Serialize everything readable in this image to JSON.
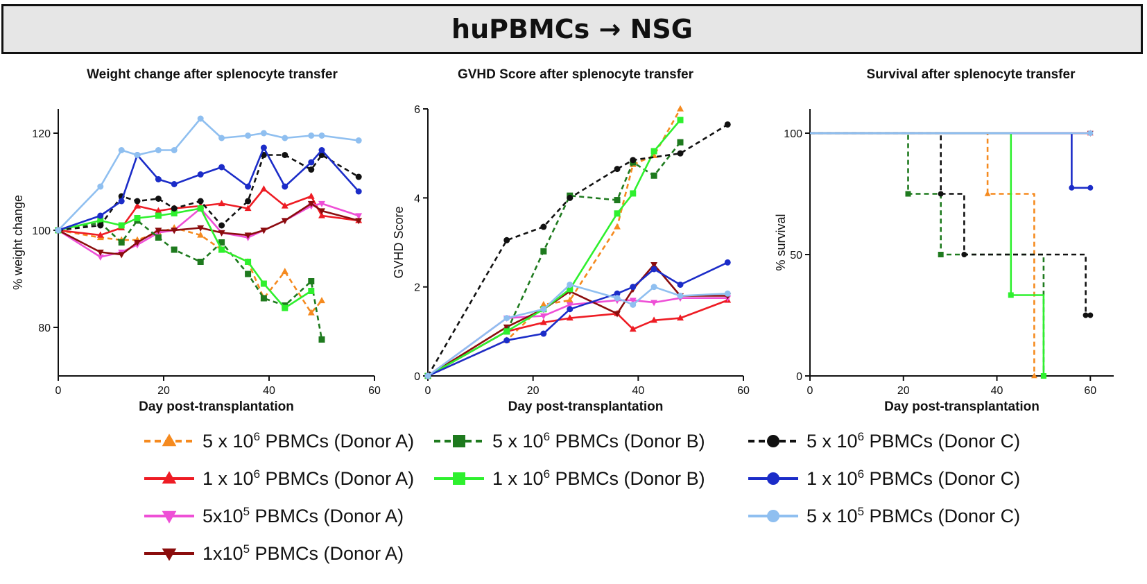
{
  "banner": {
    "title": "huPBMCs → NSG"
  },
  "chart_data": [
    {
      "type": "line",
      "title": "Weight change after splenocyte transfer",
      "xlabel": "Day post-transplantation",
      "ylabel": "% weight change",
      "xlim": [
        0,
        60
      ],
      "ylim": [
        70,
        125
      ],
      "xticks": [
        "0",
        "20",
        "40",
        "60"
      ],
      "yticks": [
        "80",
        "100",
        "120"
      ],
      "series": [
        {
          "name": "5 x 10^6 PBMCs (Donor A)",
          "x": [
            0,
            8,
            12,
            15,
            19,
            22,
            27,
            31,
            36,
            39,
            43,
            48,
            50
          ],
          "y": [
            100,
            98.5,
            98,
            98,
            99.5,
            100.5,
            99,
            96,
            93.5,
            86,
            91.5,
            83,
            85.5
          ]
        },
        {
          "name": "1 x 10^6 PBMCs (Donor A)",
          "x": [
            0,
            8,
            12,
            15,
            19,
            22,
            27,
            31,
            36,
            39,
            43,
            48,
            50,
            57
          ],
          "y": [
            100,
            99,
            100.5,
            105,
            104,
            104.5,
            105,
            105.5,
            104.5,
            108.5,
            105,
            107,
            103,
            102
          ]
        },
        {
          "name": "5x10^5 PBMCs (Donor A)",
          "x": [
            0,
            8,
            12,
            15,
            19,
            22,
            27,
            31,
            36,
            39,
            43,
            48,
            50,
            57
          ],
          "y": [
            100,
            94.5,
            95.5,
            97,
            99.5,
            100,
            104.5,
            99.5,
            98.5,
            100,
            102,
            105,
            105.5,
            103
          ]
        },
        {
          "name": "1x10^5 PBMCs (Donor A)",
          "x": [
            0,
            8,
            12,
            15,
            19,
            22,
            27,
            31,
            36,
            39,
            43,
            48,
            50,
            57
          ],
          "y": [
            100,
            95.5,
            95,
            97.5,
            100,
            100,
            100.5,
            99.5,
            99,
            100,
            102,
            105.5,
            104,
            102
          ]
        },
        {
          "name": "5 x 10^6 PBMCs (Donor B)",
          "x": [
            0,
            8,
            12,
            15,
            19,
            22,
            27,
            31,
            36,
            39,
            43,
            48,
            50
          ],
          "y": [
            100,
            101.5,
            97.5,
            102,
            98.5,
            96,
            93.5,
            97.5,
            91,
            86,
            84.5,
            89.5,
            77.5
          ]
        },
        {
          "name": "1 x 10^6 PBMCs (Donor B)",
          "x": [
            0,
            8,
            12,
            15,
            19,
            22,
            27,
            31,
            36,
            39,
            43,
            48
          ],
          "y": [
            100,
            102,
            101,
            102.5,
            103,
            103.5,
            104.5,
            96,
            93.5,
            89,
            84,
            87.5
          ]
        },
        {
          "name": "5 x 10^6 PBMCs (Donor C)",
          "x": [
            0,
            8,
            12,
            15,
            19,
            22,
            27,
            31,
            36,
            39,
            43,
            48,
            50,
            57
          ],
          "y": [
            100,
            101,
            107,
            106,
            106.5,
            104.5,
            106,
            101,
            106,
            115.5,
            115.5,
            112.5,
            115.5,
            111
          ]
        },
        {
          "name": "1 x 10^6 PBMCs (Donor C)",
          "x": [
            0,
            8,
            12,
            15,
            19,
            22,
            27,
            31,
            36,
            39,
            43,
            48,
            50,
            57
          ],
          "y": [
            100,
            103,
            106,
            115.5,
            110.5,
            109.5,
            111.5,
            113,
            109,
            117,
            109,
            114,
            116.5,
            108
          ]
        },
        {
          "name": "5 x 10^5 PBMCs (Donor C)",
          "x": [
            0,
            8,
            12,
            15,
            19,
            22,
            27,
            31,
            36,
            39,
            43,
            48,
            50,
            57
          ],
          "y": [
            100,
            109,
            116.5,
            115.5,
            116.5,
            116.5,
            123,
            119,
            119.5,
            120,
            119,
            119.5,
            119.5,
            118.5
          ]
        }
      ]
    },
    {
      "type": "line",
      "title": "GVHD Score after splenocyte transfer",
      "xlabel": "Day post-transplantation",
      "ylabel": "GVHD Score",
      "xlim": [
        0,
        60
      ],
      "ylim": [
        0,
        6
      ],
      "xticks": [
        "0",
        "20",
        "40",
        "60"
      ],
      "yticks": [
        "0",
        "2",
        "4",
        "6"
      ],
      "series": [
        {
          "name": "5 x 10^6 PBMCs (Donor A)",
          "x": [
            0,
            15,
            22,
            27,
            36,
            39,
            43,
            48
          ],
          "y": [
            0,
            0.8,
            1.6,
            1.7,
            3.35,
            4.75,
            4.95,
            6
          ]
        },
        {
          "name": "1 x 10^6 PBMCs (Donor A)",
          "x": [
            0,
            15,
            22,
            27,
            36,
            39,
            43,
            48,
            57
          ],
          "y": [
            0,
            1.0,
            1.2,
            1.3,
            1.4,
            1.05,
            1.25,
            1.3,
            1.7
          ]
        },
        {
          "name": "5x10^5 PBMCs (Donor A)",
          "x": [
            0,
            15,
            22,
            27,
            36,
            39,
            43,
            48,
            57
          ],
          "y": [
            0,
            1.3,
            1.35,
            1.6,
            1.7,
            1.7,
            1.65,
            1.75,
            1.75
          ]
        },
        {
          "name": "1x10^5 PBMCs (Donor A)",
          "x": [
            0,
            15,
            22,
            27,
            36,
            39,
            43,
            48,
            57
          ],
          "y": [
            0,
            1.1,
            1.5,
            1.9,
            1.4,
            1.95,
            2.5,
            1.8,
            1.8
          ]
        },
        {
          "name": "5 x 10^6 PBMCs (Donor B)",
          "x": [
            0,
            15,
            22,
            27,
            36,
            39,
            43,
            48
          ],
          "y": [
            0,
            1.0,
            2.8,
            4.05,
            3.95,
            4.8,
            4.5,
            5.25
          ]
        },
        {
          "name": "1 x 10^6 PBMCs (Donor B)",
          "x": [
            0,
            15,
            22,
            27,
            36,
            39,
            43,
            48
          ],
          "y": [
            0,
            1.0,
            1.5,
            1.95,
            3.65,
            4.1,
            5.05,
            5.75
          ]
        },
        {
          "name": "5 x 10^6 PBMCs (Donor C)",
          "x": [
            0,
            15,
            22,
            27,
            36,
            39,
            48,
            57
          ],
          "y": [
            0,
            3.05,
            3.35,
            4.0,
            4.65,
            4.85,
            5.0,
            5.65
          ]
        },
        {
          "name": "1 x 10^6 PBMCs (Donor C)",
          "x": [
            0,
            15,
            22,
            27,
            36,
            39,
            43,
            48,
            57
          ],
          "y": [
            0,
            0.8,
            0.95,
            1.5,
            1.85,
            2.0,
            2.4,
            2.05,
            2.55
          ]
        },
        {
          "name": "5 x 10^5 PBMCs (Donor C)",
          "x": [
            0,
            15,
            22,
            27,
            36,
            39,
            43,
            48,
            57
          ],
          "y": [
            0,
            1.3,
            1.5,
            2.05,
            1.75,
            1.6,
            2.0,
            1.8,
            1.85
          ]
        }
      ]
    },
    {
      "type": "line",
      "step": true,
      "title": "Survival after splenocyte transfer",
      "xlabel": "Day post-transplantation",
      "ylabel": "% survival",
      "xlim": [
        0,
        65
      ],
      "ylim": [
        0,
        110
      ],
      "xticks": [
        "0",
        "20",
        "40",
        "60"
      ],
      "yticks": [
        "0",
        "50",
        "100"
      ],
      "series": [
        {
          "name": "5 x 10^6 PBMCs (Donor A)",
          "x": [
            0,
            38,
            48
          ],
          "y": [
            100,
            75,
            0
          ]
        },
        {
          "name": "1 x 10^6 PBMCs (Donor A)",
          "x": [
            0,
            60
          ],
          "y": [
            100,
            100
          ]
        },
        {
          "name": "5x10^5 PBMCs (Donor A)",
          "x": [
            0,
            60
          ],
          "y": [
            100,
            100
          ]
        },
        {
          "name": "1x10^5 PBMCs (Donor A)",
          "x": [
            0,
            60
          ],
          "y": [
            100,
            100
          ]
        },
        {
          "name": "5 x 10^6 PBMCs (Donor B)",
          "x": [
            0,
            21,
            28,
            50
          ],
          "y": [
            100,
            75,
            50,
            0
          ]
        },
        {
          "name": "1 x 10^6 PBMCs (Donor B)",
          "x": [
            0,
            43,
            50
          ],
          "y": [
            100,
            33.3,
            0
          ]
        },
        {
          "name": "5 x 10^6 PBMCs (Donor C)",
          "x": [
            0,
            28,
            33,
            59,
            60
          ],
          "y": [
            100,
            75,
            50,
            25,
            25
          ]
        },
        {
          "name": "1 x 10^6 PBMCs (Donor C)",
          "x": [
            0,
            56,
            60
          ],
          "y": [
            100,
            77.5,
            77.5
          ]
        },
        {
          "name": "5 x 10^5 PBMCs (Donor C)",
          "x": [
            0,
            60
          ],
          "y": [
            100,
            100
          ]
        }
      ]
    }
  ],
  "legend": [
    {
      "id": "A5e6",
      "pre": "5 x 10",
      "exp": "6",
      "post": " PBMCs (Donor A)",
      "color": "#f58a1f",
      "marker": "tri-up",
      "dash": true
    },
    {
      "id": "A1e6",
      "pre": "1 x 10",
      "exp": "6",
      "post": " PBMCs (Donor A)",
      "color": "#ee1c24",
      "marker": "tri-up",
      "dash": false
    },
    {
      "id": "A5e5",
      "pre": "5x10",
      "exp": "5",
      "post": " PBMCs (Donor A)",
      "color": "#ee4fd6",
      "marker": "tri-down",
      "dash": false
    },
    {
      "id": "A1e5",
      "pre": "1x10",
      "exp": "5",
      "post": " PBMCs (Donor A)",
      "color": "#8b0d0d",
      "marker": "tri-down",
      "dash": false
    },
    {
      "id": "B5e6",
      "pre": "5 x 10",
      "exp": "6",
      "post": " PBMCs (Donor B)",
      "color": "#1e7a1e",
      "marker": "square",
      "dash": true
    },
    {
      "id": "B1e6",
      "pre": "1 x 10",
      "exp": "6",
      "post": " PBMCs (Donor B)",
      "color": "#2ef02e",
      "marker": "square",
      "dash": false
    },
    {
      "id": "C5e6",
      "pre": "5 x 10",
      "exp": "6",
      "post": " PBMCs (Donor C)",
      "color": "#111111",
      "marker": "circle",
      "dash": true
    },
    {
      "id": "C1e6",
      "pre": "1 x 10",
      "exp": "6",
      "post": " PBMCs (Donor C)",
      "color": "#1b2cc8",
      "marker": "circle",
      "dash": false
    },
    {
      "id": "C5e5",
      "pre": "5 x 10",
      "exp": "5",
      "post": " PBMCs (Donor C)",
      "color": "#8fbff0",
      "marker": "circle",
      "dash": false
    }
  ]
}
